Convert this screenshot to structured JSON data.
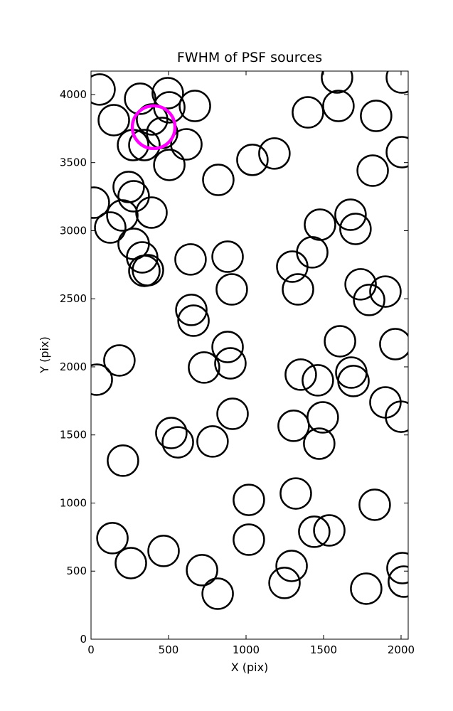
{
  "chart_data": {
    "type": "scatter",
    "title": "FWHM of PSF sources",
    "x_label": "X (pix)",
    "y_label": "Y (pix)",
    "xlim": [
      0,
      2046
    ],
    "ylim": [
      0,
      4172
    ],
    "xticks": [
      0,
      500,
      1000,
      1500,
      2000
    ],
    "yticks": [
      0,
      500,
      1000,
      1500,
      2000,
      2500,
      3000,
      3500,
      4000
    ],
    "series": [
      {
        "color": "#000000",
        "x": [
          55,
          317,
          495,
          505,
          670,
          147,
          394,
          459,
          271,
          344,
          615,
          505,
          821,
          1041,
          1183,
          1399,
          1587,
          1596,
          1839,
          1817,
          2005,
          2005,
          18,
          243,
          275,
          202,
          124,
          390,
          275,
          330,
          344,
          367,
          642,
          881,
          908,
          647,
          661,
          1298,
          1335,
          1427,
          1477,
          1674,
          1706,
          1739,
          1794,
          1899,
          1963,
          1606,
          1679,
          1693,
          1353,
          1463,
          881,
          899,
          729,
          183,
          37,
          913,
          1899,
          2000,
          1495,
          1307,
          1472,
          784,
          518,
          560,
          206,
          1321,
          1018,
          1830,
          138,
          257,
          468,
          1018,
          716,
          817,
          1294,
          1248,
          1440,
          1537,
          1775,
          2009,
          2018
        ],
        "values": [
          4037,
          3969,
          4010,
          3906,
          3916,
          3812,
          3817,
          3718,
          3629,
          3629,
          3634,
          3483,
          3373,
          3520,
          3567,
          3869,
          4125,
          3916,
          3843,
          3441,
          3577,
          4125,
          3206,
          3321,
          3253,
          3112,
          3023,
          3133,
          2903,
          2804,
          2705,
          2710,
          2789,
          2809,
          2569,
          2418,
          2339,
          2736,
          2569,
          2841,
          3044,
          3117,
          3013,
          2606,
          2491,
          2553,
          2167,
          2188,
          1958,
          1896,
          1943,
          1901,
          2146,
          2026,
          1995,
          2047,
          1906,
          1655,
          1739,
          1634,
          1629,
          1567,
          1436,
          1452,
          1514,
          1446,
          1311,
          1070,
          1023,
          987,
          742,
          559,
          648,
          731,
          507,
          334,
          538,
          413,
          789,
          799,
          371,
          522,
          423
        ]
      },
      {
        "color": "#ff00ff",
        "x": [
          404
        ],
        "values": [
          3760
        ]
      }
    ]
  }
}
